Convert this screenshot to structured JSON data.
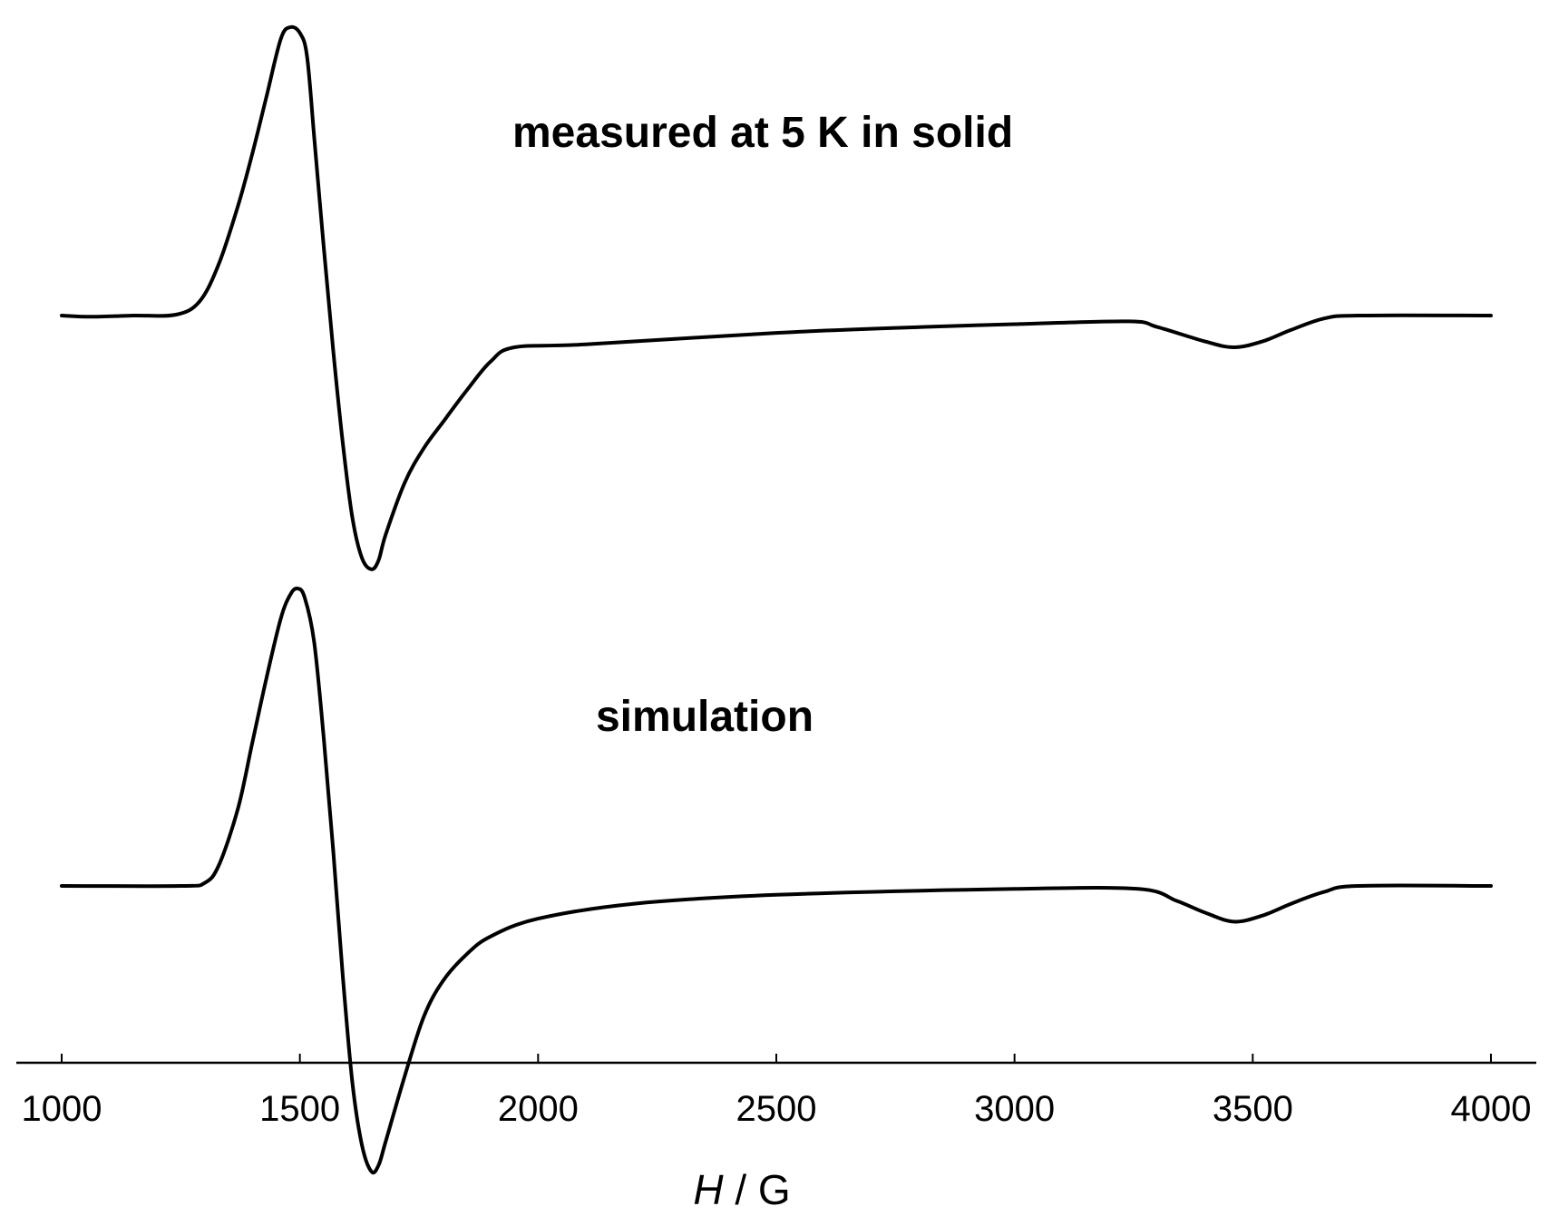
{
  "chart_data": {
    "type": "line",
    "xlabel_var": "H",
    "xlabel_sep": " / ",
    "xlabel_unit": "G",
    "xlim": [
      1000,
      4000
    ],
    "xticks": [
      "1000",
      "1500",
      "2000",
      "2500",
      "3000",
      "3500",
      "4000"
    ],
    "y_axis_shown": false,
    "grid": false,
    "legend": "none",
    "series": [
      {
        "name": "measured at 5 K in solid",
        "x": [
          1000,
          1060,
          1150,
          1240,
          1290,
          1330,
          1370,
          1400,
          1430,
          1460,
          1480,
          1500,
          1515,
          1530,
          1550,
          1570,
          1590,
          1610,
          1630,
          1650,
          1665,
          1680,
          1720,
          1760,
          1800,
          1850,
          1900,
          1950,
          2100,
          2500,
          2800,
          3000,
          3240,
          3300,
          3400,
          3460,
          3520,
          3580,
          3650,
          3720,
          4000
        ],
        "y": [
          0.0,
          -0.004,
          0.0,
          0.003,
          0.05,
          0.18,
          0.38,
          0.56,
          0.76,
          0.96,
          1.0,
          0.98,
          0.9,
          0.62,
          0.24,
          -0.12,
          -0.44,
          -0.7,
          -0.84,
          -0.88,
          -0.85,
          -0.76,
          -0.58,
          -0.46,
          -0.37,
          -0.26,
          -0.16,
          -0.11,
          -0.1,
          -0.06,
          -0.04,
          -0.03,
          -0.02,
          -0.04,
          -0.09,
          -0.11,
          -0.09,
          -0.05,
          -0.01,
          0.0,
          0.0
        ]
      },
      {
        "name": "simulation",
        "x": [
          1000,
          1250,
          1300,
          1330,
          1370,
          1400,
          1430,
          1460,
          1480,
          1495,
          1510,
          1530,
          1550,
          1570,
          1590,
          1610,
          1630,
          1650,
          1665,
          1680,
          1720,
          1760,
          1800,
          1850,
          1900,
          2000,
          2200,
          2500,
          3000,
          3260,
          3340,
          3400,
          3460,
          3520,
          3580,
          3650,
          3720,
          4000
        ],
        "y": [
          0.0,
          0.0,
          0.01,
          0.07,
          0.26,
          0.48,
          0.7,
          0.9,
          0.98,
          1.0,
          0.97,
          0.82,
          0.5,
          0.12,
          -0.3,
          -0.66,
          -0.87,
          -0.96,
          -0.94,
          -0.86,
          -0.64,
          -0.44,
          -0.32,
          -0.23,
          -0.17,
          -0.11,
          -0.06,
          -0.03,
          -0.01,
          -0.01,
          -0.05,
          -0.09,
          -0.12,
          -0.1,
          -0.06,
          -0.02,
          0.0,
          0.0
        ]
      }
    ]
  }
}
